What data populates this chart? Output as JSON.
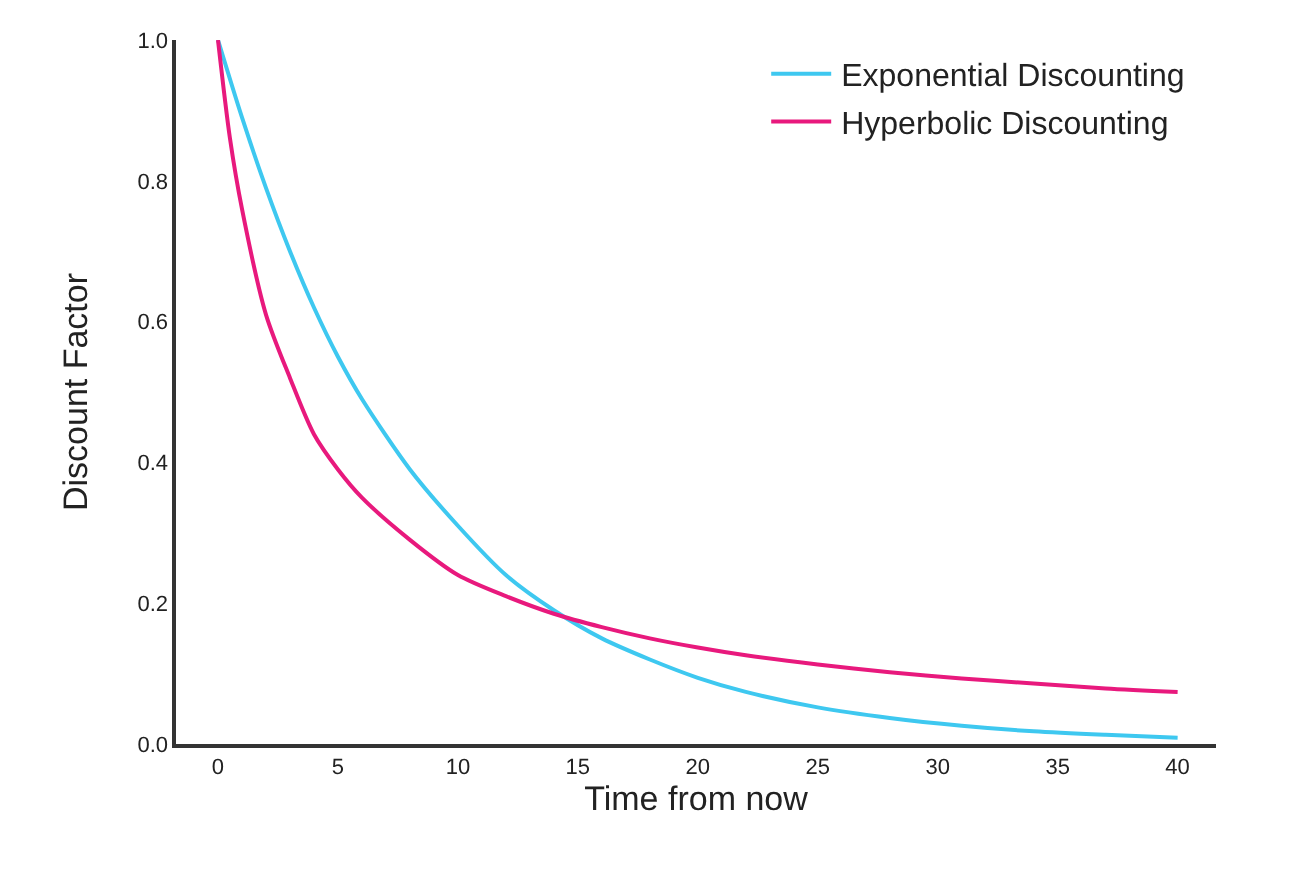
{
  "chart_data": {
    "type": "line",
    "xlabel": "Time from now",
    "ylabel": "Discount Factor",
    "xlim": [
      -1.75,
      41.6
    ],
    "xticks": [
      0,
      5,
      10,
      15,
      20,
      25,
      30,
      35,
      40
    ],
    "ylim": [
      0,
      1
    ],
    "yticks": [
      {
        "value": 0,
        "label": "0.0"
      },
      0.2,
      0.4,
      0.6,
      0.8,
      {
        "value": 1,
        "label": "1.0"
      }
    ],
    "grid": false,
    "legend": "top right",
    "marker": "none",
    "line_style": "solid",
    "series": [
      {
        "name": "Exponential Discounting",
        "color": "#3ec8f0",
        "x": [
          0,
          1,
          2,
          3,
          4,
          5,
          6,
          8,
          10,
          12,
          14,
          16,
          18,
          20,
          22,
          25,
          28,
          31,
          34,
          37,
          40
        ],
        "values": [
          1,
          0.89,
          0.79,
          0.7,
          0.62,
          0.55,
          0.49,
          0.39,
          0.31,
          0.24,
          0.19,
          0.15,
          0.12,
          0.094,
          0.074,
          0.052,
          0.037,
          0.026,
          0.018,
          0.013,
          0.009
        ]
      },
      {
        "name": "Hyperbolic Discounting",
        "color": "#e8197d",
        "x": [
          0,
          0.5,
          1,
          2,
          3,
          4,
          5,
          6,
          8,
          10,
          12,
          14,
          16,
          18,
          20,
          22,
          25,
          28,
          31,
          34,
          37,
          40
        ],
        "values": [
          1,
          0.86,
          0.76,
          0.61,
          0.52,
          0.44,
          0.39,
          0.35,
          0.29,
          0.24,
          0.21,
          0.185,
          0.166,
          0.15,
          0.137,
          0.126,
          0.113,
          0.102,
          0.093,
          0.086,
          0.079,
          0.074
        ]
      }
    ]
  }
}
